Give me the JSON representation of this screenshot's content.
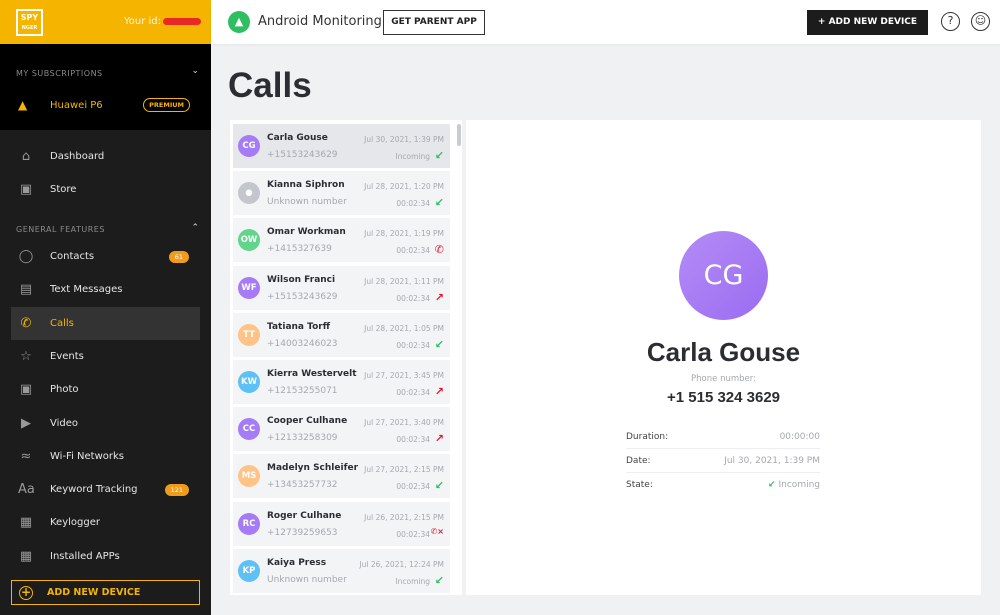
{
  "brand": {
    "logo_top": "SPY",
    "logo_bottom": "NGER",
    "your_id_label": "Your id:"
  },
  "sidebar": {
    "subscriptions_label": "MY SUBSCRIPTIONS",
    "device": {
      "name": "Huawei P6",
      "badge": "PREMIUM"
    },
    "top_items": [
      {
        "label": "Dashboard",
        "icon": "home-icon"
      },
      {
        "label": "Store",
        "icon": "bag-icon"
      }
    ],
    "features_label": "GENERAL FEATURES",
    "items": [
      {
        "label": "Contacts",
        "icon": "user-icon",
        "badge": "61"
      },
      {
        "label": "Text Messages",
        "icon": "message-icon"
      },
      {
        "label": "Calls",
        "icon": "phone-icon",
        "active": true
      },
      {
        "label": "Events",
        "icon": "star-icon"
      },
      {
        "label": "Photo",
        "icon": "image-icon"
      },
      {
        "label": "Video",
        "icon": "video-icon"
      },
      {
        "label": "Wi-Fi Networks",
        "icon": "wifi-icon"
      },
      {
        "label": "Keyword Tracking",
        "icon": "font-icon",
        "badge": "121"
      },
      {
        "label": "Keylogger",
        "icon": "keyboard-icon"
      },
      {
        "label": "Installed APPs",
        "icon": "apps-icon"
      }
    ],
    "add_device": "ADD NEW DEVICE"
  },
  "header": {
    "title": "Android Monitoring",
    "get_parent_app": "GET PARENT APP",
    "add_new_device": "+ ADD NEW DEVICE"
  },
  "page": {
    "title": "Calls"
  },
  "calls": [
    {
      "initials": "CG",
      "name": "Carla Gouse",
      "number": "+15153243629",
      "date": "Jul 30, 2021, 1:39 PM",
      "status": "Incoming",
      "type": "incoming",
      "color": "#a57cf5"
    },
    {
      "initials": "",
      "name": "Kianna Siphron",
      "number": "Unknown number",
      "date": "Jul 28, 2021, 1:20 PM",
      "status": "00:02:34",
      "type": "incoming",
      "color": "#c3c6cd"
    },
    {
      "initials": "OW",
      "name": "Omar Workman",
      "number": "+1415327639",
      "date": "Jul 28, 2021, 1:19 PM",
      "status": "00:02:34",
      "type": "missed",
      "color": "#62d48c"
    },
    {
      "initials": "WF",
      "name": "Wilson Franci",
      "number": "+15153243629",
      "date": "Jul 28, 2021, 1:11 PM",
      "status": "00:02:34",
      "type": "outgoing",
      "color": "#a57cf5"
    },
    {
      "initials": "TT",
      "name": "Tatiana Torff",
      "number": "+14003246023",
      "date": "Jul 28, 2021, 1:05 PM",
      "status": "00:02:34",
      "type": "incoming",
      "color": "#ffc387"
    },
    {
      "initials": "KW",
      "name": "Kierra Westervelt",
      "number": "+12153255071",
      "date": "Jul 27, 2021, 3:45 PM",
      "status": "00:02:34",
      "type": "outgoing",
      "color": "#5ec1f5"
    },
    {
      "initials": "CC",
      "name": "Cooper Culhane",
      "number": "+12133258309",
      "date": "Jul 27, 2021, 3:40 PM",
      "status": "00:02:34",
      "type": "outgoing",
      "color": "#a57cf5"
    },
    {
      "initials": "MS",
      "name": "Madelyn Schleifer",
      "number": "+13453257732",
      "date": "Jul 27, 2021, 2:15 PM",
      "status": "00:02:34",
      "type": "incoming",
      "color": "#ffc387"
    },
    {
      "initials": "RC",
      "name": "Roger Culhane",
      "number": "+12739259653",
      "date": "Jul 26, 2021, 2:15 PM",
      "status": "00:02:34",
      "type": "rejected",
      "color": "#a57cf5"
    },
    {
      "initials": "KP",
      "name": "Kaiya Press",
      "number": "Unknown number",
      "date": "Jul 26, 2021, 12:24 PM",
      "status": "Incoming",
      "type": "incoming",
      "color": "#5ec1f5"
    }
  ],
  "detail": {
    "initials": "CG",
    "name": "Carla Gouse",
    "phone_label": "Phone number:",
    "phone": "+1 515 324 3629",
    "rows": [
      {
        "key": "Duration:",
        "value": "00:00:00"
      },
      {
        "key": "Date:",
        "value": "Jul 30, 2021, 1:39 PM"
      },
      {
        "key": "State:",
        "value": "Incoming"
      }
    ]
  },
  "colors": {
    "accent": "#f4b400",
    "incoming": "#2fbf63",
    "outgoing": "#e8112d"
  }
}
